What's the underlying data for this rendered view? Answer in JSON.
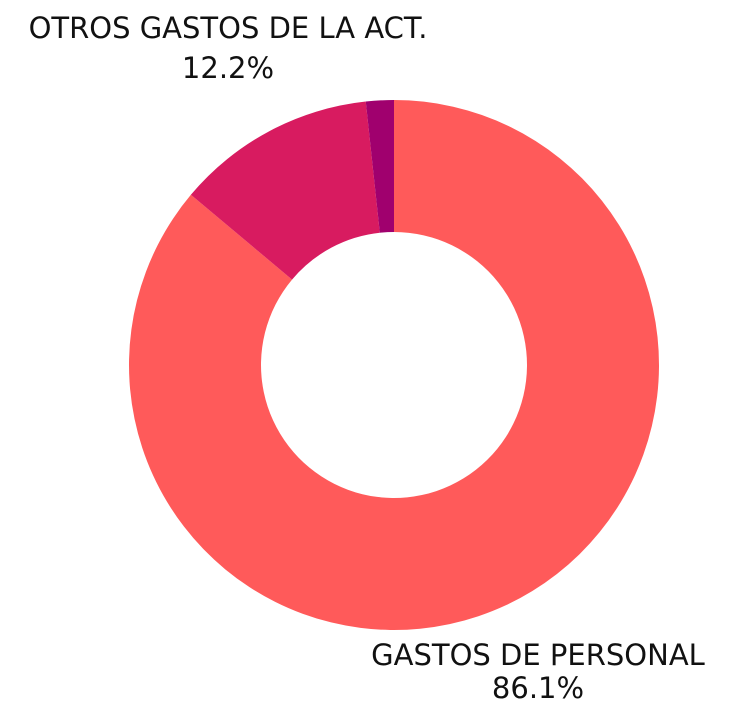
{
  "chart_data": {
    "type": "donut",
    "categories": [
      "GASTOS DE PERSONAL",
      "OTROS GASTOS DE LA ACT.",
      null
    ],
    "values": [
      86.1,
      12.2,
      1.7
    ],
    "value_labels": [
      "86.1%",
      "12.2%",
      null
    ],
    "colors": [
      "#ff5a5a",
      "#d81b60",
      "#a0006e"
    ]
  }
}
